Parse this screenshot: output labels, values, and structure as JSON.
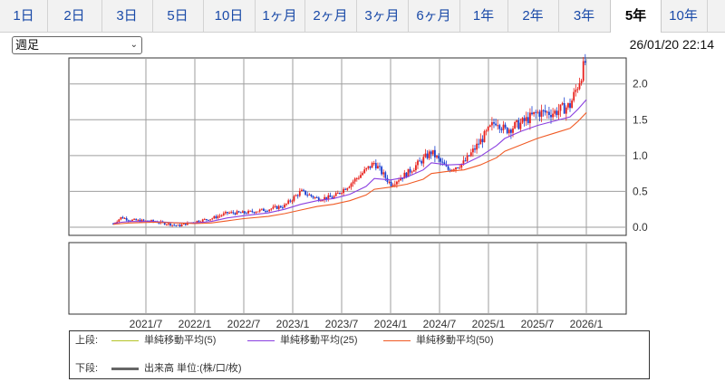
{
  "tabs": [
    {
      "label": "1日",
      "active": false
    },
    {
      "label": "2日",
      "active": false
    },
    {
      "label": "3日",
      "active": false
    },
    {
      "label": "5日",
      "active": false
    },
    {
      "label": "10日",
      "active": false
    },
    {
      "label": "1ヶ月",
      "active": false
    },
    {
      "label": "2ヶ月",
      "active": false
    },
    {
      "label": "3ヶ月",
      "active": false
    },
    {
      "label": "6ヶ月",
      "active": false
    },
    {
      "label": "1年",
      "active": false
    },
    {
      "label": "2年",
      "active": false
    },
    {
      "label": "3年",
      "active": false
    },
    {
      "label": "5年",
      "active": true
    },
    {
      "label": "10年",
      "active": false
    }
  ],
  "period_select": {
    "value": "週足"
  },
  "timestamp": "26/01/20 22:14",
  "legend": {
    "upper_label": "上段:",
    "lower_label": "下段:",
    "ma5_label": "単純移動平均(5)",
    "ma25_label": "単純移動平均(25)",
    "ma50_label": "単純移動平均(50)",
    "volume_label": "出来高 単位:(株/口/枚)"
  },
  "colors": {
    "ma5": "#b5c427",
    "ma25": "#8a3fe0",
    "ma50": "#f05a24",
    "candle_up": "#e8221d",
    "candle_down": "#1a3fd0",
    "volume": "#666666",
    "grid": "#9e9e9e"
  },
  "chart_data": {
    "type": "candlestick",
    "frequency": "weekly",
    "x_ticks": [
      "2021/7",
      "2022/1",
      "2022/7",
      "2023/1",
      "2023/7",
      "2024/1",
      "2024/7",
      "2025/1",
      "2025/7",
      "2026/1"
    ],
    "y_ticks": [
      "0.0",
      "0.5",
      "1.0",
      "1.5",
      "2.0"
    ],
    "ylim": [
      0,
      2.3
    ],
    "price_points": [
      {
        "date": "2021-03",
        "value": 0.05
      },
      {
        "date": "2021-04",
        "value": 0.14
      },
      {
        "date": "2021-05",
        "value": 0.1
      },
      {
        "date": "2021-08",
        "value": 0.08
      },
      {
        "date": "2021-11",
        "value": 0.02
      },
      {
        "date": "2022-01",
        "value": 0.08
      },
      {
        "date": "2022-03",
        "value": 0.12
      },
      {
        "date": "2022-05",
        "value": 0.2
      },
      {
        "date": "2022-07",
        "value": 0.2
      },
      {
        "date": "2022-10",
        "value": 0.25
      },
      {
        "date": "2022-12",
        "value": 0.3
      },
      {
        "date": "2023-02",
        "value": 0.5
      },
      {
        "date": "2023-04",
        "value": 0.4
      },
      {
        "date": "2023-06",
        "value": 0.42
      },
      {
        "date": "2023-08",
        "value": 0.6
      },
      {
        "date": "2023-10",
        "value": 0.8
      },
      {
        "date": "2023-11",
        "value": 0.9
      },
      {
        "date": "2024-01",
        "value": 0.6
      },
      {
        "date": "2024-03",
        "value": 0.75
      },
      {
        "date": "2024-05",
        "value": 0.95
      },
      {
        "date": "2024-06",
        "value": 1.05
      },
      {
        "date": "2024-08",
        "value": 0.8
      },
      {
        "date": "2024-10",
        "value": 0.9
      },
      {
        "date": "2024-12",
        "value": 1.2
      },
      {
        "date": "2025-02",
        "value": 1.5
      },
      {
        "date": "2025-03",
        "value": 1.35
      },
      {
        "date": "2025-05",
        "value": 1.45
      },
      {
        "date": "2025-07",
        "value": 1.6
      },
      {
        "date": "2025-09",
        "value": 1.6
      },
      {
        "date": "2025-11",
        "value": 1.7
      },
      {
        "date": "2025-12",
        "value": 2.0
      },
      {
        "date": "2026-01",
        "value": 2.35
      }
    ],
    "series": [
      {
        "name": "単純移動平均(5)",
        "values": [
          0.06,
          0.12,
          0.1,
          0.08,
          0.04,
          0.07,
          0.11,
          0.18,
          0.2,
          0.24,
          0.28,
          0.45,
          0.42,
          0.42,
          0.57,
          0.75,
          0.85,
          0.65,
          0.74,
          0.92,
          1.0,
          0.83,
          0.9,
          1.15,
          1.45,
          1.38,
          1.45,
          1.58,
          1.6,
          1.7,
          1.95,
          2.25
        ]
      },
      {
        "name": "単純移動平均(25)",
        "values": [
          0.05,
          0.07,
          0.08,
          0.08,
          0.06,
          0.06,
          0.08,
          0.13,
          0.16,
          0.2,
          0.25,
          0.32,
          0.37,
          0.4,
          0.46,
          0.57,
          0.68,
          0.66,
          0.7,
          0.8,
          0.9,
          0.87,
          0.88,
          0.99,
          1.14,
          1.24,
          1.34,
          1.42,
          1.48,
          1.54,
          1.65,
          1.78
        ]
      },
      {
        "name": "単純移動平均(50)",
        "values": [
          0.04,
          0.05,
          0.06,
          0.07,
          0.06,
          0.05,
          0.06,
          0.09,
          0.12,
          0.15,
          0.19,
          0.24,
          0.29,
          0.32,
          0.37,
          0.45,
          0.53,
          0.56,
          0.6,
          0.67,
          0.75,
          0.78,
          0.8,
          0.87,
          0.97,
          1.06,
          1.15,
          1.24,
          1.31,
          1.38,
          1.48,
          1.6
        ]
      }
    ],
    "volume": [],
    "xlabel": "",
    "ylabel": "",
    "grid": true
  }
}
